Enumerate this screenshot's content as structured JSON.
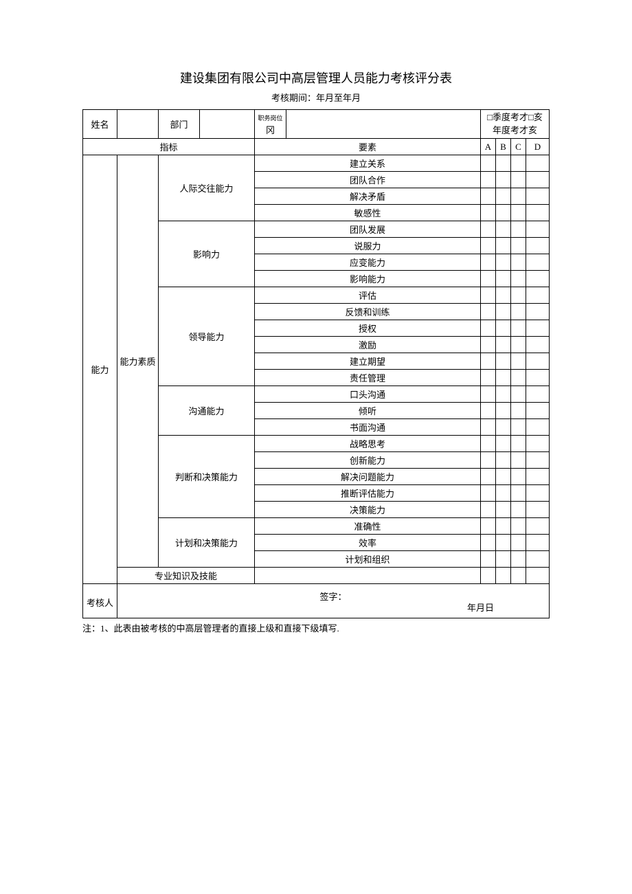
{
  "title": "建设集团有限公司中高层管理人员能力考核评分表",
  "subtitle": "考核期间：年月至年月",
  "headerRow": {
    "name_label": "姓名",
    "dept_label": "部门",
    "post_label_small": "职务岗位",
    "post_suffix": "冈",
    "check1": "□季度考才□亥",
    "check2": "年度考才亥"
  },
  "colHeads": {
    "indicator": "指标",
    "element": "要素",
    "A": "A",
    "B": "B",
    "C": "C",
    "D": "D"
  },
  "main": {
    "ability": "能力",
    "quality": "能力素质",
    "groups": [
      {
        "label": "人际交往能力",
        "items": [
          "建立关系",
          "团队合作",
          "解决矛盾",
          "敏感性"
        ]
      },
      {
        "label": "影响力",
        "items": [
          "团队发展",
          "说服力",
          "应变能力",
          "影响能力"
        ]
      },
      {
        "label": "领导能力",
        "items": [
          "评估",
          "反馈和训练",
          "授权",
          "激励",
          "建立期望",
          "责任管理"
        ]
      },
      {
        "label": "沟通能力",
        "items": [
          "口头沟通",
          "倾听",
          "书面沟通"
        ]
      },
      {
        "label": "判断和决策能力",
        "items": [
          "战略思考",
          "创新能力",
          "解决问题能力",
          "推断评估能力",
          "决策能力"
        ]
      },
      {
        "label": "计划和决策能力",
        "items": [
          "准确性",
          "效率",
          "计划和组织"
        ]
      }
    ],
    "skills_label": "专业知识及技能"
  },
  "footer": {
    "assessor": "考核人",
    "sign": "签字：",
    "date": "年月日"
  },
  "note": "注：1、此表由被考核的中高层管理者的直接上级和直接下级填写."
}
